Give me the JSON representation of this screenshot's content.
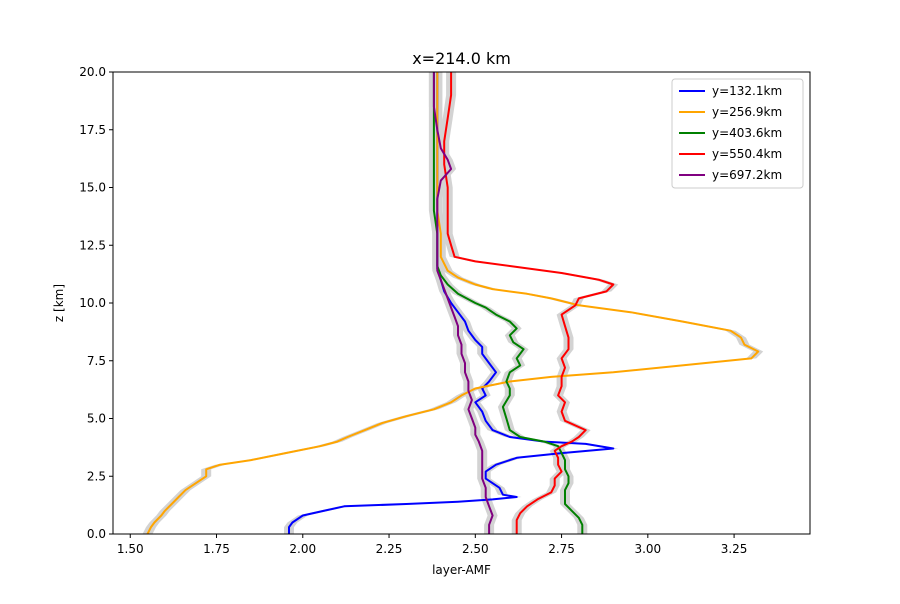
{
  "chart_data": {
    "type": "line",
    "title": "x=214.0 km",
    "xlabel": "layer-AMF",
    "ylabel": "z [km]",
    "xlim": [
      1.45,
      3.47
    ],
    "ylim": [
      0,
      20
    ],
    "xticks": [
      1.5,
      1.75,
      2.0,
      2.25,
      2.5,
      2.75,
      3.0,
      3.25
    ],
    "xtick_labels": [
      "1.50",
      "1.75",
      "2.00",
      "2.25",
      "2.50",
      "2.75",
      "3.00",
      "3.25"
    ],
    "yticks": [
      0,
      2.5,
      5,
      7.5,
      10,
      12.5,
      15,
      17.5,
      20
    ],
    "ytick_labels": [
      "0.0",
      "2.5",
      "5.0",
      "7.5",
      "10.0",
      "12.5",
      "15.0",
      "17.5",
      "20.0"
    ],
    "grid": false,
    "legend_position": "top-right",
    "uncertainty_band_color": "#d3d3d3",
    "series": [
      {
        "name": "y=132.1km",
        "color": "#0000ff",
        "points": [
          [
            1.96,
            0
          ],
          [
            1.96,
            0.3
          ],
          [
            1.97,
            0.5
          ],
          [
            2.0,
            0.8
          ],
          [
            2.06,
            1.0
          ],
          [
            2.12,
            1.2
          ],
          [
            2.3,
            1.3
          ],
          [
            2.45,
            1.4
          ],
          [
            2.55,
            1.5
          ],
          [
            2.62,
            1.6
          ],
          [
            2.58,
            1.7
          ],
          [
            2.57,
            2.0
          ],
          [
            2.55,
            2.2
          ],
          [
            2.53,
            2.4
          ],
          [
            2.53,
            2.7
          ],
          [
            2.56,
            3.0
          ],
          [
            2.62,
            3.3
          ],
          [
            2.75,
            3.5
          ],
          [
            2.9,
            3.7
          ],
          [
            2.82,
            3.9
          ],
          [
            2.7,
            4.0
          ],
          [
            2.6,
            4.2
          ],
          [
            2.55,
            4.5
          ],
          [
            2.53,
            4.9
          ],
          [
            2.52,
            5.3
          ],
          [
            2.5,
            5.7
          ],
          [
            2.53,
            6.0
          ],
          [
            2.52,
            6.3
          ],
          [
            2.54,
            6.6
          ],
          [
            2.56,
            7.0
          ],
          [
            2.54,
            7.4
          ],
          [
            2.52,
            7.8
          ],
          [
            2.52,
            8.1
          ],
          [
            2.5,
            8.4
          ],
          [
            2.48,
            8.8
          ],
          [
            2.47,
            9.2
          ],
          [
            2.45,
            9.6
          ],
          [
            2.43,
            10.0
          ],
          [
            2.41,
            10.5
          ],
          [
            2.4,
            11.0
          ],
          [
            2.39,
            11.5
          ],
          [
            2.39,
            12.0
          ],
          [
            2.39,
            13.0
          ],
          [
            2.39,
            14.0
          ],
          [
            2.39,
            15.0
          ],
          [
            2.39,
            16.0
          ],
          [
            2.39,
            17.0
          ],
          [
            2.39,
            18.0
          ],
          [
            2.39,
            19.0
          ],
          [
            2.39,
            20.0
          ]
        ]
      },
      {
        "name": "y=256.9km",
        "color": "#ffa500",
        "points": [
          [
            1.55,
            0
          ],
          [
            1.56,
            0.3
          ],
          [
            1.57,
            0.5
          ],
          [
            1.59,
            0.8
          ],
          [
            1.6,
            1.0
          ],
          [
            1.62,
            1.3
          ],
          [
            1.64,
            1.6
          ],
          [
            1.66,
            1.9
          ],
          [
            1.69,
            2.2
          ],
          [
            1.72,
            2.5
          ],
          [
            1.72,
            2.8
          ],
          [
            1.76,
            3.0
          ],
          [
            1.85,
            3.2
          ],
          [
            1.95,
            3.5
          ],
          [
            2.05,
            3.8
          ],
          [
            2.1,
            4.0
          ],
          [
            2.13,
            4.2
          ],
          [
            2.18,
            4.5
          ],
          [
            2.23,
            4.8
          ],
          [
            2.3,
            5.1
          ],
          [
            2.38,
            5.4
          ],
          [
            2.43,
            5.7
          ],
          [
            2.46,
            6.0
          ],
          [
            2.5,
            6.3
          ],
          [
            2.6,
            6.6
          ],
          [
            2.72,
            6.8
          ],
          [
            2.9,
            7.0
          ],
          [
            3.1,
            7.3
          ],
          [
            3.3,
            7.6
          ],
          [
            3.32,
            7.9
          ],
          [
            3.28,
            8.2
          ],
          [
            3.27,
            8.5
          ],
          [
            3.24,
            8.8
          ],
          [
            3.1,
            9.2
          ],
          [
            2.95,
            9.6
          ],
          [
            2.8,
            9.9
          ],
          [
            2.72,
            10.2
          ],
          [
            2.65,
            10.4
          ],
          [
            2.55,
            10.6
          ],
          [
            2.5,
            10.8
          ],
          [
            2.45,
            11.1
          ],
          [
            2.42,
            11.4
          ],
          [
            2.41,
            11.7
          ],
          [
            2.4,
            12.0
          ],
          [
            2.4,
            13.0
          ],
          [
            2.39,
            14.0
          ],
          [
            2.39,
            15.0
          ],
          [
            2.39,
            16.0
          ],
          [
            2.39,
            17.0
          ],
          [
            2.39,
            18.0
          ],
          [
            2.39,
            19.0
          ],
          [
            2.39,
            20.0
          ]
        ]
      },
      {
        "name": "y=403.6km",
        "color": "#008000",
        "points": [
          [
            2.81,
            0
          ],
          [
            2.81,
            0.4
          ],
          [
            2.8,
            0.7
          ],
          [
            2.78,
            1.0
          ],
          [
            2.76,
            1.3
          ],
          [
            2.76,
            1.6
          ],
          [
            2.76,
            1.9
          ],
          [
            2.77,
            2.2
          ],
          [
            2.77,
            2.5
          ],
          [
            2.76,
            2.8
          ],
          [
            2.76,
            3.2
          ],
          [
            2.75,
            3.5
          ],
          [
            2.74,
            3.8
          ],
          [
            2.7,
            4.0
          ],
          [
            2.63,
            4.2
          ],
          [
            2.6,
            4.5
          ],
          [
            2.59,
            5.0
          ],
          [
            2.58,
            5.5
          ],
          [
            2.6,
            6.0
          ],
          [
            2.6,
            6.3
          ],
          [
            2.59,
            6.6
          ],
          [
            2.6,
            7.0
          ],
          [
            2.63,
            7.3
          ],
          [
            2.62,
            7.6
          ],
          [
            2.64,
            8.0
          ],
          [
            2.61,
            8.3
          ],
          [
            2.6,
            8.6
          ],
          [
            2.62,
            8.9
          ],
          [
            2.6,
            9.2
          ],
          [
            2.56,
            9.5
          ],
          [
            2.53,
            9.8
          ],
          [
            2.5,
            10.0
          ],
          [
            2.45,
            10.4
          ],
          [
            2.42,
            10.8
          ],
          [
            2.4,
            11.2
          ],
          [
            2.39,
            11.6
          ],
          [
            2.39,
            12.0
          ],
          [
            2.39,
            13.0
          ],
          [
            2.38,
            14.0
          ],
          [
            2.38,
            15.0
          ],
          [
            2.38,
            16.0
          ],
          [
            2.38,
            17.0
          ],
          [
            2.38,
            18.0
          ],
          [
            2.38,
            19.0
          ],
          [
            2.38,
            20.0
          ]
        ]
      },
      {
        "name": "y=550.4km",
        "color": "#ff0000",
        "points": [
          [
            2.62,
            0
          ],
          [
            2.62,
            0.3
          ],
          [
            2.62,
            0.6
          ],
          [
            2.63,
            0.9
          ],
          [
            2.65,
            1.2
          ],
          [
            2.68,
            1.5
          ],
          [
            2.72,
            1.8
          ],
          [
            2.73,
            2.1
          ],
          [
            2.73,
            2.4
          ],
          [
            2.75,
            2.7
          ],
          [
            2.74,
            3.0
          ],
          [
            2.74,
            3.3
          ],
          [
            2.73,
            3.6
          ],
          [
            2.75,
            3.8
          ],
          [
            2.78,
            4.0
          ],
          [
            2.8,
            4.2
          ],
          [
            2.82,
            4.5
          ],
          [
            2.76,
            4.9
          ],
          [
            2.75,
            5.3
          ],
          [
            2.76,
            5.7
          ],
          [
            2.74,
            6.0
          ],
          [
            2.75,
            6.4
          ],
          [
            2.75,
            6.8
          ],
          [
            2.76,
            7.2
          ],
          [
            2.75,
            7.6
          ],
          [
            2.77,
            8.0
          ],
          [
            2.77,
            8.5
          ],
          [
            2.76,
            9.0
          ],
          [
            2.75,
            9.5
          ],
          [
            2.79,
            9.9
          ],
          [
            2.8,
            10.2
          ],
          [
            2.88,
            10.5
          ],
          [
            2.9,
            10.8
          ],
          [
            2.86,
            11.0
          ],
          [
            2.75,
            11.3
          ],
          [
            2.6,
            11.6
          ],
          [
            2.5,
            11.8
          ],
          [
            2.44,
            12.0
          ],
          [
            2.43,
            12.5
          ],
          [
            2.42,
            13.0
          ],
          [
            2.42,
            14.0
          ],
          [
            2.42,
            15.0
          ],
          [
            2.41,
            16.0
          ],
          [
            2.41,
            17.0
          ],
          [
            2.42,
            18.0
          ],
          [
            2.43,
            19.0
          ],
          [
            2.43,
            20.0
          ]
        ]
      },
      {
        "name": "y=697.2km",
        "color": "#800080",
        "points": [
          [
            2.54,
            0
          ],
          [
            2.54,
            0.4
          ],
          [
            2.55,
            0.8
          ],
          [
            2.54,
            1.2
          ],
          [
            2.53,
            1.6
          ],
          [
            2.53,
            2.0
          ],
          [
            2.52,
            2.4
          ],
          [
            2.52,
            2.8
          ],
          [
            2.52,
            3.2
          ],
          [
            2.52,
            3.6
          ],
          [
            2.51,
            4.0
          ],
          [
            2.5,
            4.3
          ],
          [
            2.5,
            4.6
          ],
          [
            2.49,
            5.0
          ],
          [
            2.48,
            5.4
          ],
          [
            2.49,
            5.8
          ],
          [
            2.48,
            6.2
          ],
          [
            2.48,
            6.6
          ],
          [
            2.47,
            7.0
          ],
          [
            2.47,
            7.4
          ],
          [
            2.46,
            7.8
          ],
          [
            2.46,
            8.2
          ],
          [
            2.45,
            8.6
          ],
          [
            2.45,
            9.0
          ],
          [
            2.44,
            9.4
          ],
          [
            2.43,
            9.8
          ],
          [
            2.42,
            10.2
          ],
          [
            2.41,
            10.6
          ],
          [
            2.4,
            11.0
          ],
          [
            2.39,
            11.4
          ],
          [
            2.39,
            11.8
          ],
          [
            2.39,
            12.5
          ],
          [
            2.39,
            13.5
          ],
          [
            2.39,
            14.5
          ],
          [
            2.4,
            15.3
          ],
          [
            2.43,
            15.8
          ],
          [
            2.42,
            16.2
          ],
          [
            2.4,
            16.7
          ],
          [
            2.39,
            17.5
          ],
          [
            2.38,
            18.5
          ],
          [
            2.38,
            19.5
          ],
          [
            2.38,
            20.0
          ]
        ]
      }
    ]
  }
}
